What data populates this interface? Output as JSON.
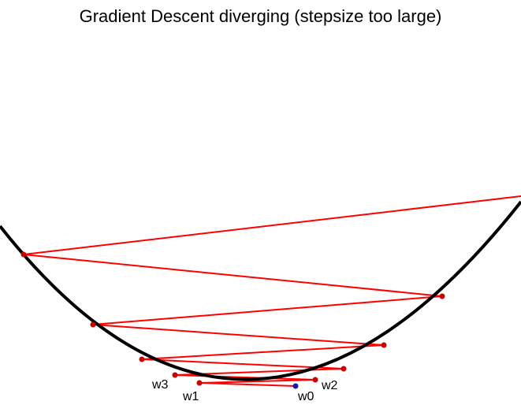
{
  "title": "Gradient Descent diverging (stepsize too large)",
  "colors": {
    "curve": "#000000",
    "path": "#ff0000",
    "start_point": "#1a1aa8",
    "iterate_point": "#cc0000"
  },
  "labels": {
    "w0": "w0",
    "w1": "w1",
    "w2": "w2",
    "w3": "w3"
  }
}
